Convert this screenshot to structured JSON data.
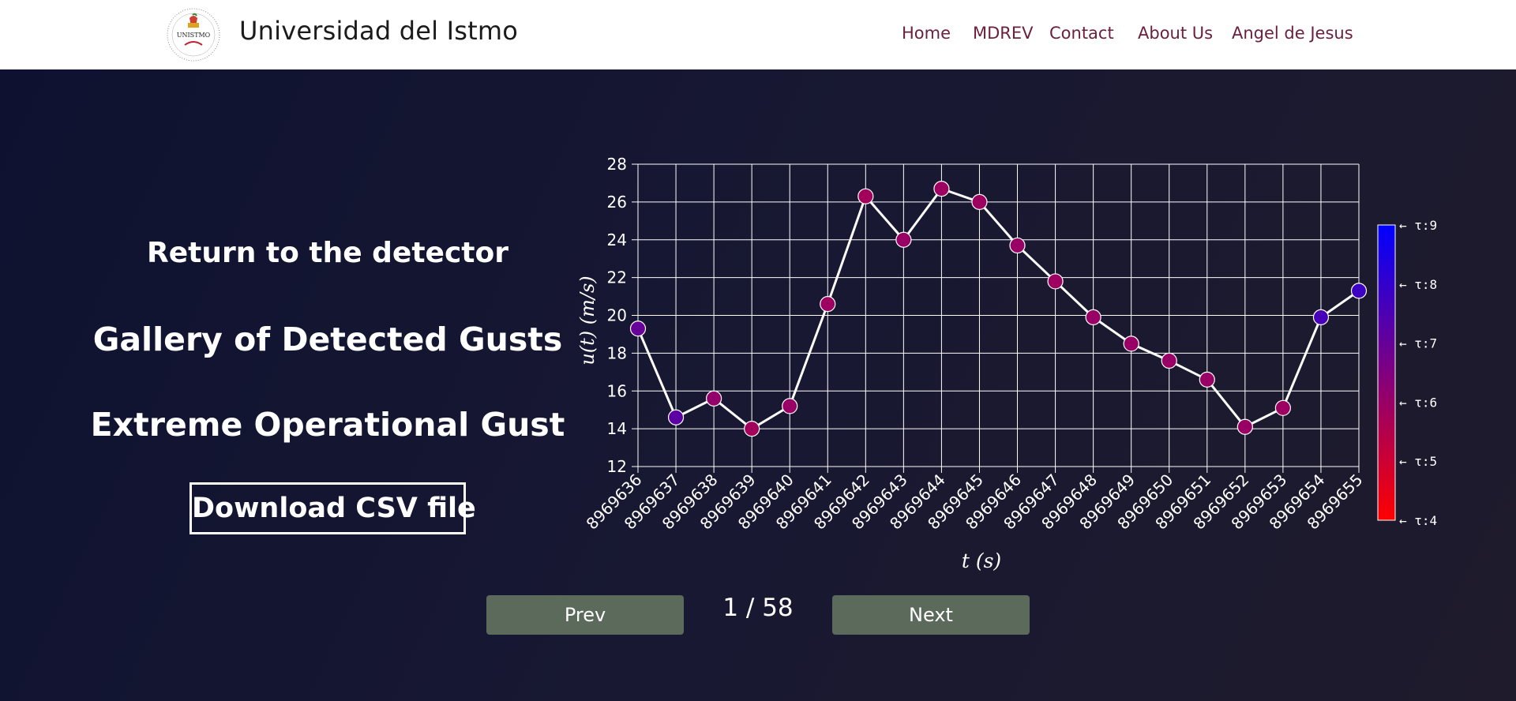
{
  "navbar": {
    "logo_text": "UNISTMO",
    "brand": "Universidad del Istmo",
    "links": [
      "Home",
      "MDREV",
      "Contact",
      "About Us",
      "Angel de Jesus"
    ]
  },
  "side": {
    "return_link": "Return to the detector",
    "gallery_link": "Gallery of Detected Gusts",
    "gust_type": "Extreme Operational Gust",
    "download_label": "Download CSV file"
  },
  "pager": {
    "prev_label": "Prev",
    "next_label": "Next",
    "count": "1 / 58"
  },
  "colors": {
    "tau_low": "#ff0000",
    "tau_high": "#0000ff",
    "button_bg": "#5b6a5b",
    "nav_link": "#6a1f3e"
  },
  "chart_data": {
    "type": "line",
    "xlabel": "t (s)",
    "ylabel": "u(t) (m/s)",
    "ylim": [
      12,
      28
    ],
    "yticks": [
      12,
      14,
      16,
      18,
      20,
      22,
      24,
      26,
      28
    ],
    "grid": true,
    "x": [
      "8969636",
      "8969637",
      "8969638",
      "8969639",
      "8969640",
      "8969641",
      "8969642",
      "8969643",
      "8969644",
      "8969645",
      "8969646",
      "8969647",
      "8969648",
      "8969649",
      "8969650",
      "8969651",
      "8969652",
      "8969653",
      "8969654",
      "8969655"
    ],
    "values": [
      19.3,
      14.6,
      15.6,
      14.0,
      15.2,
      20.6,
      26.3,
      24.0,
      26.7,
      26.0,
      23.7,
      21.8,
      19.9,
      18.5,
      17.6,
      16.6,
      14.1,
      15.1,
      19.9,
      21.3
    ],
    "tau": [
      7.0,
      7.2,
      6.1,
      5.8,
      6.0,
      5.9,
      5.8,
      6.0,
      5.9,
      5.9,
      6.0,
      5.9,
      6.0,
      6.0,
      6.0,
      6.0,
      6.0,
      5.9,
      7.6,
      7.8
    ],
    "colorbar": {
      "min": 4,
      "max": 9,
      "tick_labels": [
        "← τ:9",
        "← τ:8",
        "← τ:7",
        "← τ:6",
        "← τ:5",
        "← τ:4"
      ]
    }
  }
}
